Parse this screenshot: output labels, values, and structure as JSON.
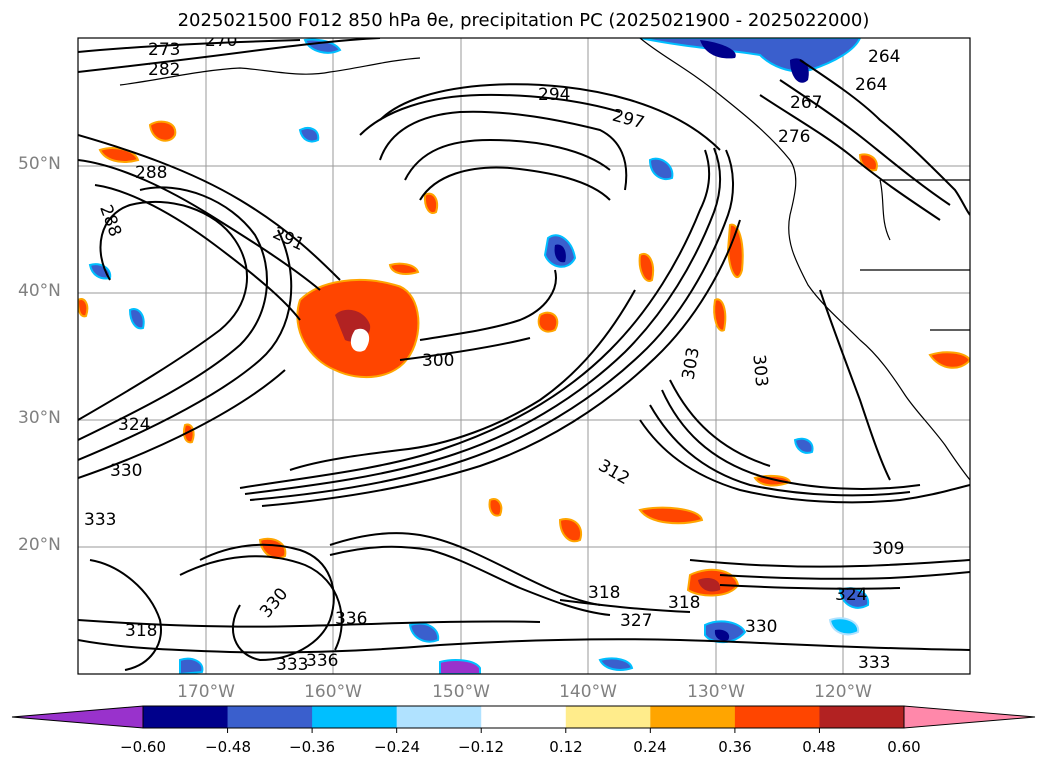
{
  "title": "2025021500 F012 850 hPa θe, precipitation PC (2025021900 - 2025022000)",
  "map": {
    "projection": "equirectangular",
    "lon_range_deg": [
      -180,
      -110
    ],
    "lat_range_deg": [
      10,
      60
    ],
    "gridlines": true,
    "lat_labels": [
      "50°N",
      "40°N",
      "30°N",
      "20°N"
    ],
    "lon_labels": [
      "170°W",
      "160°W",
      "150°W",
      "140°W",
      "130°W",
      "120°W"
    ],
    "contour_color": "#000000",
    "contour_labels": [
      "273",
      "270",
      "282",
      "288",
      "288",
      "291",
      "294",
      "297",
      "264",
      "264",
      "267",
      "276",
      "300",
      "303",
      "303",
      "324",
      "330",
      "333",
      "309",
      "312",
      "318",
      "318",
      "327",
      "330",
      "324",
      "336",
      "333",
      "336",
      "330",
      "318",
      "333"
    ]
  },
  "colorbar": {
    "ticks": [
      "−0.60",
      "−0.48",
      "−0.36",
      "−0.24",
      "−0.12",
      "0.12",
      "0.24",
      "0.36",
      "0.48",
      "0.60"
    ],
    "colors": [
      "#9932cc",
      "#00008b",
      "#3a5fcd",
      "#00bfff",
      "#b0e2ff",
      "#ffffff",
      "#ffec8b",
      "#ffa500",
      "#ff4500",
      "#b22222",
      "#ff88aa"
    ],
    "extend": "both"
  }
}
